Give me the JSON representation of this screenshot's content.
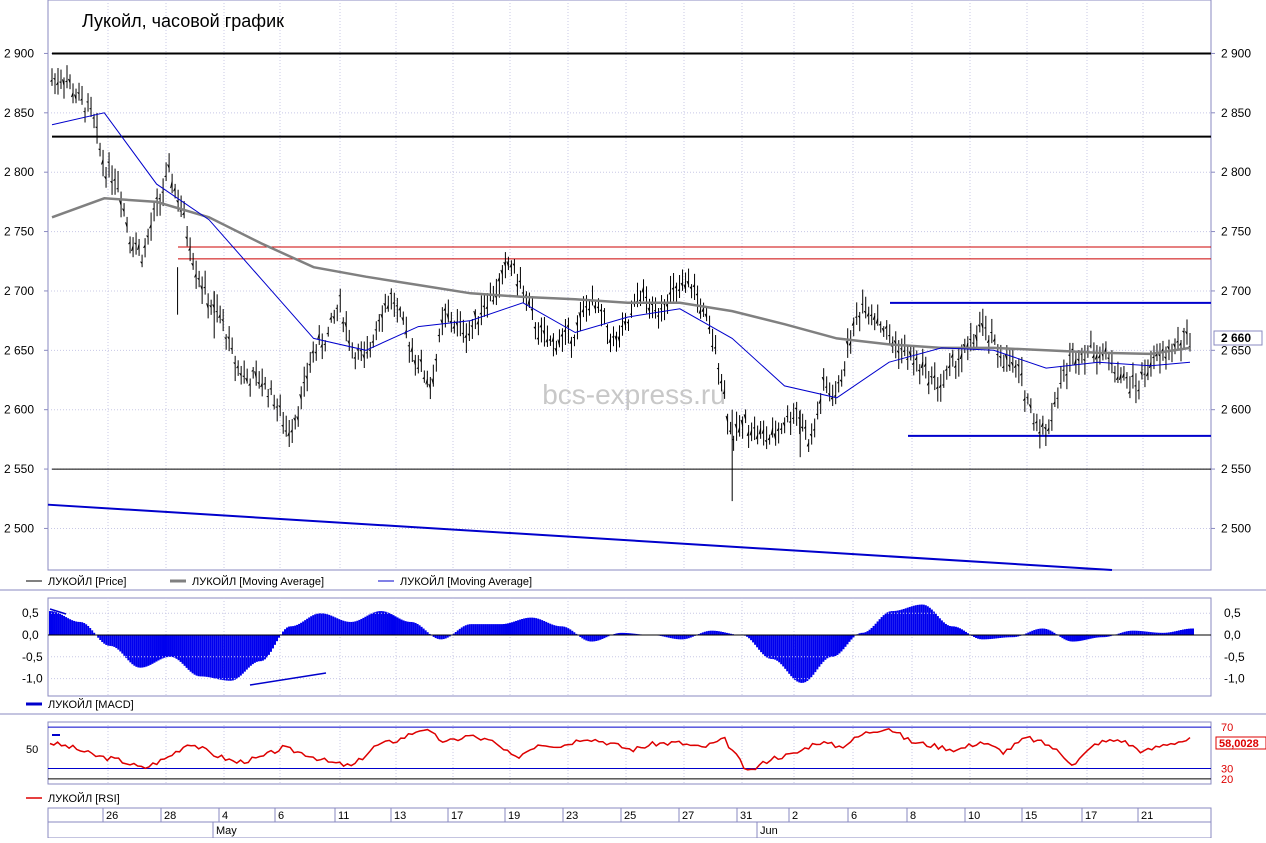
{
  "title": "Лукойл, часовой график",
  "watermark": "bcs-express.ru",
  "price_axis": {
    "ticks": [
      2500,
      2550,
      2600,
      2650,
      2700,
      2750,
      2800,
      2850,
      2900
    ],
    "tick_labels": [
      "2 500",
      "2 550",
      "2 600",
      "2 650",
      "2 700",
      "2 750",
      "2 800",
      "2 850",
      "2 900"
    ],
    "ylim": [
      2465,
      2945
    ],
    "last_price": 2660,
    "last_price_label": "2 660"
  },
  "legend_main": [
    {
      "label": "ЛУКОЙЛ [Price]",
      "color": "#000000"
    },
    {
      "label": "ЛУКОЙЛ [Moving Average]",
      "color": "#808080"
    },
    {
      "label": "ЛУКОЙЛ [Moving Average]",
      "color": "#0000cc"
    }
  ],
  "macd_axis": {
    "ticks": [
      0.5,
      0.0,
      -0.5,
      -1.0
    ],
    "tick_labels": [
      "0,5",
      "0,0",
      "-0,5",
      "-1,0"
    ],
    "ylim": [
      -1.4,
      0.85
    ]
  },
  "legend_macd": {
    "label": "ЛУКОЙЛ [MACD]",
    "color": "#0000cc"
  },
  "rsi_axis": {
    "left_label": "50",
    "levels": [
      70,
      30,
      20
    ],
    "level_labels": [
      "70",
      "30",
      "20"
    ],
    "last_value_label": "58,0028",
    "ylim": [
      15,
      75
    ]
  },
  "legend_rsi": {
    "label": "ЛУКОЙЛ [RSI]",
    "color": "#dd0000"
  },
  "time_axis": {
    "day_labels": [
      "26",
      "28",
      "4",
      "6",
      "11",
      "13",
      "17",
      "19",
      "23",
      "25",
      "27",
      "31",
      "2",
      "6",
      "8",
      "10",
      "15",
      "17",
      "21"
    ],
    "month_labels": [
      "May",
      "Jun"
    ]
  },
  "chart_data": {
    "type": "line",
    "title": "Лукойл, часовой график",
    "x_categories": [
      "26",
      "28",
      "4",
      "6",
      "11",
      "13",
      "17",
      "19",
      "23",
      "25",
      "27",
      "31",
      "2",
      "6",
      "8",
      "10",
      "15",
      "17",
      "21"
    ],
    "series": [
      {
        "name": "ЛУКОЙЛ [Price]",
        "type": "ohlc",
        "approx_close_path": [
          [
            0.0,
            2878
          ],
          [
            0.25,
            2880
          ],
          [
            0.5,
            2862
          ],
          [
            0.75,
            2850
          ],
          [
            1.0,
            2805
          ],
          [
            1.25,
            2795
          ],
          [
            1.5,
            2745
          ],
          [
            1.75,
            2730
          ],
          [
            2.0,
            2770
          ],
          [
            2.25,
            2800
          ],
          [
            2.5,
            2765
          ],
          [
            2.75,
            2720
          ],
          [
            3.0,
            2690
          ],
          [
            3.25,
            2675
          ],
          [
            3.5,
            2640
          ],
          [
            3.75,
            2625
          ],
          [
            4.0,
            2625
          ],
          [
            4.25,
            2610
          ],
          [
            4.5,
            2580
          ],
          [
            4.75,
            2605
          ],
          [
            5.0,
            2650
          ],
          [
            5.25,
            2660
          ],
          [
            5.5,
            2690
          ],
          [
            5.75,
            2650
          ],
          [
            6.0,
            2640
          ],
          [
            6.25,
            2680
          ],
          [
            6.5,
            2695
          ],
          [
            6.75,
            2665
          ],
          [
            7.0,
            2640
          ],
          [
            7.25,
            2620
          ],
          [
            7.5,
            2680
          ],
          [
            7.75,
            2670
          ],
          [
            8.0,
            2665
          ],
          [
            8.25,
            2690
          ],
          [
            8.5,
            2700
          ],
          [
            8.75,
            2725
          ],
          [
            9.0,
            2700
          ],
          [
            9.25,
            2670
          ],
          [
            9.5,
            2655
          ],
          [
            9.75,
            2660
          ],
          [
            10.0,
            2665
          ],
          [
            10.25,
            2690
          ],
          [
            10.5,
            2680
          ],
          [
            10.75,
            2655
          ],
          [
            11.0,
            2670
          ],
          [
            11.25,
            2700
          ],
          [
            11.5,
            2680
          ],
          [
            11.75,
            2695
          ],
          [
            12.0,
            2700
          ],
          [
            12.25,
            2705
          ],
          [
            12.5,
            2675
          ],
          [
            12.75,
            2640
          ],
          [
            13.0,
            2575
          ],
          [
            13.25,
            2590
          ],
          [
            13.5,
            2580
          ],
          [
            13.75,
            2575
          ],
          [
            14.0,
            2590
          ],
          [
            14.25,
            2600
          ],
          [
            14.5,
            2570
          ],
          [
            14.75,
            2620
          ],
          [
            15.0,
            2610
          ],
          [
            15.25,
            2660
          ],
          [
            15.5,
            2690
          ],
          [
            15.75,
            2680
          ],
          [
            16.0,
            2660
          ],
          [
            16.25,
            2650
          ],
          [
            16.5,
            2640
          ],
          [
            16.75,
            2630
          ],
          [
            17.0,
            2620
          ],
          [
            17.25,
            2640
          ],
          [
            17.5,
            2650
          ],
          [
            17.75,
            2670
          ],
          [
            18.0,
            2655
          ],
          [
            18.25,
            2640
          ],
          [
            18.5,
            2630
          ],
          [
            18.75,
            2595
          ],
          [
            19.0,
            2580
          ],
          [
            19.25,
            2620
          ],
          [
            19.5,
            2645
          ],
          [
            19.75,
            2650
          ],
          [
            20.0,
            2650
          ],
          [
            20.25,
            2640
          ],
          [
            20.5,
            2625
          ],
          [
            20.75,
            2620
          ],
          [
            21.0,
            2640
          ],
          [
            21.25,
            2645
          ],
          [
            21.5,
            2655
          ],
          [
            21.75,
            2660
          ]
        ]
      },
      {
        "name": "ЛУКОЙЛ [Moving Average]",
        "color": "#808080",
        "approx_path": [
          [
            0.0,
            2762
          ],
          [
            1.0,
            2778
          ],
          [
            2.0,
            2775
          ],
          [
            3.0,
            2762
          ],
          [
            4.0,
            2740
          ],
          [
            5.0,
            2720
          ],
          [
            6.0,
            2712
          ],
          [
            7.0,
            2705
          ],
          [
            8.0,
            2698
          ],
          [
            9.0,
            2695
          ],
          [
            10.0,
            2693
          ],
          [
            11.0,
            2690
          ],
          [
            12.0,
            2690
          ],
          [
            13.0,
            2683
          ],
          [
            14.0,
            2672
          ],
          [
            15.0,
            2660
          ],
          [
            16.0,
            2655
          ],
          [
            17.0,
            2652
          ],
          [
            18.0,
            2652
          ],
          [
            19.0,
            2650
          ],
          [
            20.0,
            2648
          ],
          [
            21.0,
            2647
          ],
          [
            21.75,
            2652
          ]
        ]
      },
      {
        "name": "ЛУКОЙЛ [Moving Average]",
        "color": "#0000cc",
        "approx_path": [
          [
            0.0,
            2840
          ],
          [
            1.0,
            2850
          ],
          [
            2.0,
            2790
          ],
          [
            3.0,
            2760
          ],
          [
            4.0,
            2710
          ],
          [
            5.0,
            2660
          ],
          [
            6.0,
            2650
          ],
          [
            7.0,
            2670
          ],
          [
            8.0,
            2675
          ],
          [
            9.0,
            2690
          ],
          [
            10.0,
            2665
          ],
          [
            11.0,
            2678
          ],
          [
            12.0,
            2685
          ],
          [
            13.0,
            2660
          ],
          [
            14.0,
            2620
          ],
          [
            15.0,
            2610
          ],
          [
            16.0,
            2640
          ],
          [
            17.0,
            2652
          ],
          [
            18.0,
            2650
          ],
          [
            19.0,
            2635
          ],
          [
            20.0,
            2640
          ],
          [
            21.0,
            2637
          ],
          [
            21.75,
            2640
          ]
        ]
      }
    ],
    "horizontal_levels": [
      {
        "value": 2900,
        "color": "#000000"
      },
      {
        "value": 2830,
        "color": "#000000"
      },
      {
        "value": 2550,
        "color": "#000000"
      },
      {
        "value": 2737,
        "color": "#cc0000"
      },
      {
        "value": 2727,
        "color": "#cc0000"
      },
      {
        "value": 2690,
        "color": "#0000cc"
      },
      {
        "value": 2578,
        "color": "#0000cc"
      }
    ],
    "trendline": {
      "from": [
        0,
        2520
      ],
      "to": [
        21,
        2465
      ],
      "color": "#0000cc"
    },
    "macd_values": [
      0.55,
      0.3,
      -0.25,
      -0.75,
      -0.5,
      -0.95,
      -1.05,
      -0.6,
      0.2,
      0.5,
      0.3,
      0.55,
      0.3,
      -0.1,
      0.25,
      0.25,
      0.4,
      0.2,
      -0.15,
      0.05,
      0.0,
      -0.1,
      0.1,
      0.0,
      -0.55,
      -1.1,
      -0.5,
      0.05,
      0.55,
      0.7,
      0.2,
      -0.1,
      -0.05,
      0.15,
      -0.15,
      -0.05,
      0.1,
      0.05,
      0.15
    ],
    "rsi_values": [
      55,
      50,
      42,
      38,
      30,
      40,
      55,
      44,
      36,
      40,
      50,
      44,
      36,
      32,
      52,
      58,
      69,
      55,
      62,
      56,
      40,
      54,
      52,
      60,
      55,
      48,
      54,
      55,
      50,
      58,
      26,
      40,
      44,
      56,
      51,
      64,
      70,
      56,
      52,
      48,
      56,
      46,
      60,
      52,
      34,
      55,
      58,
      46,
      54,
      58
    ]
  }
}
